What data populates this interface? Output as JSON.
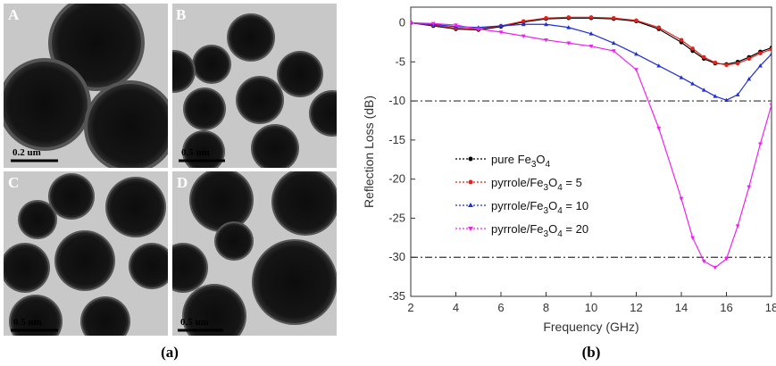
{
  "figure": {
    "caption_a": "(a)",
    "caption_b": "(b)"
  },
  "tem_panels": [
    {
      "letter": "A",
      "scale": "0.2 um"
    },
    {
      "letter": "B",
      "scale": "0.5 um"
    },
    {
      "letter": "C",
      "scale": "0.5 um"
    },
    {
      "letter": "D",
      "scale": "0.5 um"
    }
  ],
  "colors": {
    "tem_background": "#c8c8c8",
    "particle": "#141414",
    "shell": "#5a5a5a",
    "series": [
      "#000000",
      "#e0231c",
      "#1f2fd6",
      "#ee22ee"
    ]
  },
  "chart_data": {
    "type": "line",
    "xlabel": "Frequency (GHz)",
    "ylabel": "Reflection Loss (dB)",
    "xlim": [
      2,
      18
    ],
    "ylim": [
      -35,
      2
    ],
    "xticks": [
      2,
      4,
      6,
      8,
      10,
      12,
      14,
      16,
      18
    ],
    "yticks": [
      0,
      -5,
      -10,
      -15,
      -20,
      -25,
      -30,
      -35
    ],
    "grid": false,
    "legend_position": "middle-left",
    "reference_lines": [
      -10,
      -30
    ],
    "x": [
      2,
      3,
      4,
      5,
      6,
      7,
      8,
      9,
      10,
      11,
      12,
      13,
      14,
      14.5,
      15,
      15.5,
      16,
      16.5,
      17,
      17.5,
      18
    ],
    "series": [
      {
        "name": "pure Fe3O4",
        "values": [
          0,
          -0.4,
          -0.8,
          -0.9,
          -0.5,
          0.1,
          0.5,
          0.6,
          0.6,
          0.5,
          0.2,
          -0.8,
          -2.5,
          -3.6,
          -4.6,
          -5.2,
          -5.3,
          -5.0,
          -4.4,
          -3.7,
          -3.2
        ]
      },
      {
        "name": "pyrrole/Fe3O4 = 5",
        "values": [
          0,
          -0.3,
          -0.7,
          -0.8,
          -0.4,
          0.2,
          0.6,
          0.7,
          0.7,
          0.6,
          0.3,
          -0.6,
          -2.2,
          -3.3,
          -4.4,
          -5.1,
          -5.4,
          -5.2,
          -4.6,
          -3.9,
          -3.4
        ]
      },
      {
        "name": "pyrrole/Fe3O4 = 10",
        "values": [
          0,
          -0.2,
          -0.5,
          -0.6,
          -0.4,
          -0.2,
          -0.2,
          -0.6,
          -1.4,
          -2.6,
          -4.0,
          -5.5,
          -7.0,
          -7.8,
          -8.6,
          -9.4,
          -9.9,
          -9.2,
          -7.2,
          -5.5,
          -4.0
        ]
      },
      {
        "name": "pyrrole/Fe3O4 = 20",
        "values": [
          0,
          -0.1,
          -0.3,
          -0.8,
          -1.2,
          -1.7,
          -2.2,
          -2.6,
          -3.0,
          -3.6,
          -6.0,
          -13.5,
          -22.5,
          -27.5,
          -30.5,
          -31.3,
          -30.2,
          -26.0,
          -21.0,
          -15.5,
          -10.5
        ]
      }
    ]
  },
  "legend": {
    "entries": [
      {
        "pre": "pure Fe",
        "sub1": "3",
        "mid": "O",
        "sub2": "4",
        "post": ""
      },
      {
        "pre": "pyrrole/Fe",
        "sub1": "3",
        "mid": "O",
        "sub2": "4",
        "post": " = 5"
      },
      {
        "pre": "pyrrole/Fe",
        "sub1": "3",
        "mid": "O",
        "sub2": "4",
        "post": " = 10"
      },
      {
        "pre": "pyrrole/Fe",
        "sub1": "3",
        "mid": "O",
        "sub2": "4",
        "post": " = 20"
      }
    ]
  }
}
